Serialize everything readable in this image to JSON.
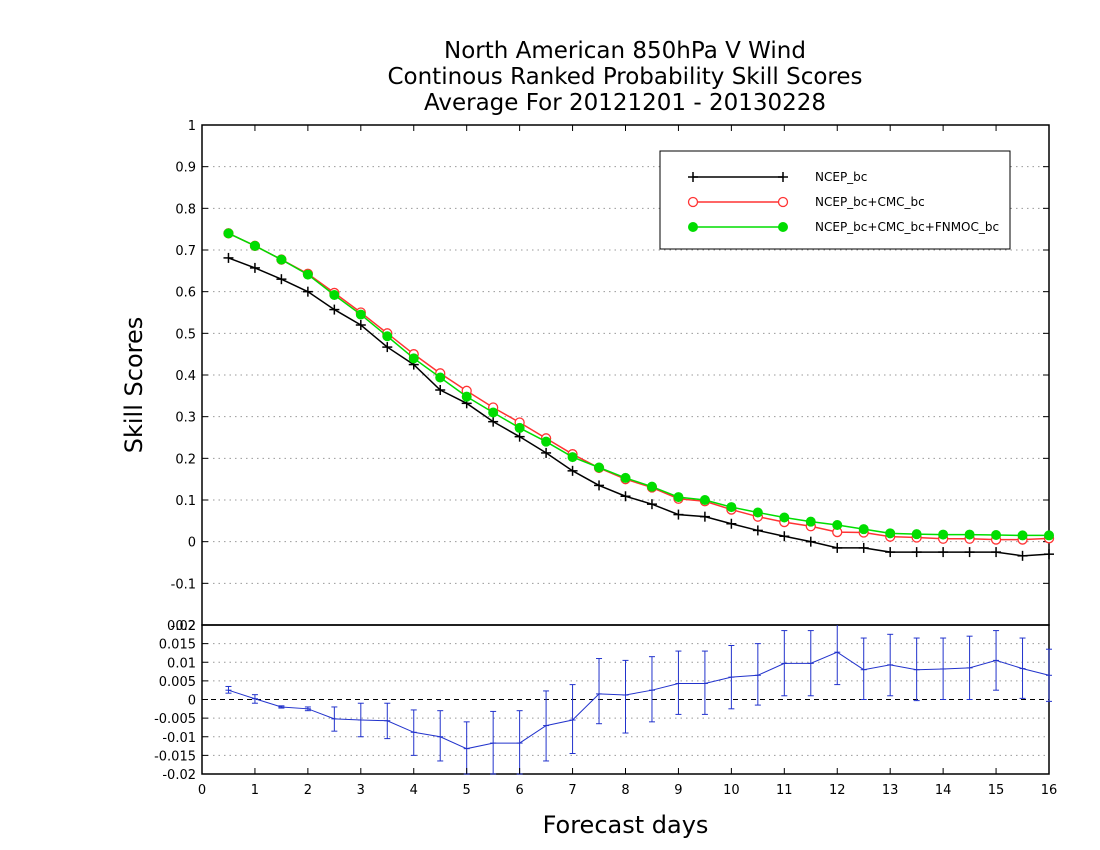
{
  "chart_data": [
    {
      "type": "line",
      "title_lines": [
        "North American 850hPa V Wind",
        "Continous Ranked Probability Skill Scores",
        "Average For 20121201 - 20130228"
      ],
      "xlabel": "Forecast days",
      "ylabel": "Skill Scores",
      "xlim": [
        0,
        16
      ],
      "ylim": [
        -0.2,
        1
      ],
      "xticks": [
        "0",
        "1",
        "2",
        "3",
        "4",
        "5",
        "6",
        "7",
        "8",
        "9",
        "10",
        "11",
        "12",
        "13",
        "14",
        "15",
        "16"
      ],
      "yticks": [
        "-0.2",
        "-0.1",
        "0",
        "0.1",
        "0.2",
        "0.3",
        "0.4",
        "0.5",
        "0.6",
        "0.7",
        "0.8",
        "0.9",
        "1"
      ],
      "grid": "dotted-horizontal",
      "legend_position": "top-right",
      "x": [
        0.5,
        1,
        1.5,
        2,
        2.5,
        3,
        3.5,
        4,
        4.5,
        5,
        5.5,
        6,
        6.5,
        7,
        7.5,
        8,
        8.5,
        9,
        9.5,
        10,
        10.5,
        11,
        11.5,
        12,
        12.5,
        13,
        13.5,
        14,
        14.5,
        15,
        15.5,
        16
      ],
      "series": [
        {
          "name": "NCEP_bc",
          "color": "#000000",
          "marker": "plus",
          "values": [
            0.681,
            0.657,
            0.63,
            0.6,
            0.557,
            0.52,
            0.467,
            0.425,
            0.364,
            0.332,
            0.288,
            0.252,
            0.213,
            0.17,
            0.135,
            0.109,
            0.09,
            0.065,
            0.06,
            0.043,
            0.027,
            0.013,
            0.0,
            -0.015,
            -0.015,
            -0.025,
            -0.025,
            -0.025,
            -0.025,
            -0.025,
            -0.034,
            -0.03
          ]
        },
        {
          "name": "NCEP_bc+CMC_bc",
          "color": "#ff3333",
          "marker": "open-circle",
          "values": [
            0.74,
            0.71,
            0.677,
            0.643,
            0.597,
            0.55,
            0.5,
            0.45,
            0.404,
            0.362,
            0.322,
            0.286,
            0.248,
            0.21,
            0.177,
            0.15,
            0.13,
            0.103,
            0.097,
            0.077,
            0.06,
            0.047,
            0.037,
            0.023,
            0.022,
            0.012,
            0.01,
            0.007,
            0.007,
            0.005,
            0.005,
            0.008
          ]
        },
        {
          "name": "NCEP_bc+CMC_bc+FNMOC_bc",
          "color": "#00dd00",
          "marker": "filled-circle",
          "values": [
            0.74,
            0.71,
            0.677,
            0.641,
            0.592,
            0.545,
            0.493,
            0.44,
            0.394,
            0.348,
            0.31,
            0.273,
            0.24,
            0.203,
            0.178,
            0.153,
            0.132,
            0.107,
            0.1,
            0.083,
            0.07,
            0.058,
            0.048,
            0.04,
            0.03,
            0.02,
            0.018,
            0.017,
            0.017,
            0.016,
            0.015,
            0.015
          ]
        }
      ]
    },
    {
      "type": "line",
      "subtype": "difference-with-error-bars",
      "xlim": [
        0,
        16
      ],
      "ylim": [
        -0.02,
        0.02
      ],
      "yticks": [
        "-0.02",
        "-0.015",
        "-0.01",
        "-0.005",
        "0",
        "0.005",
        "0.01",
        "0.015",
        "0.02"
      ],
      "grid": "dotted-horizontal",
      "zero_line": "dashed",
      "color": "#2233cc",
      "x": [
        0.5,
        1,
        1.5,
        2,
        2.5,
        3,
        3.5,
        4,
        4.5,
        5,
        5.5,
        6,
        6.5,
        7,
        7.5,
        8,
        8.5,
        9,
        9.5,
        10,
        10.5,
        11,
        11.5,
        12,
        12.5,
        13,
        13.5,
        14,
        14.5,
        15,
        15.5,
        16
      ],
      "values": [
        0.0025,
        0.0002,
        -0.002,
        -0.0025,
        -0.0052,
        -0.0055,
        -0.0057,
        -0.0088,
        -0.01,
        -0.0132,
        -0.0117,
        -0.0117,
        -0.007,
        -0.0055,
        0.0015,
        0.0012,
        0.0025,
        0.0043,
        0.0043,
        0.006,
        0.0065,
        0.0097,
        0.0097,
        0.0127,
        0.008,
        0.0093,
        0.008,
        0.0082,
        0.0085,
        0.0105,
        0.0083,
        0.0065
      ],
      "err_low": [
        0.0017,
        -0.001,
        -0.0023,
        -0.003,
        -0.0085,
        -0.01,
        -0.0105,
        -0.015,
        -0.0165,
        -0.02,
        -0.02,
        -0.02,
        -0.0165,
        -0.0145,
        -0.0065,
        -0.009,
        -0.006,
        -0.004,
        -0.004,
        -0.0025,
        -0.0015,
        0.001,
        0.001,
        0.004,
        0.0,
        0.001,
        -0.0003,
        0.0,
        0.0,
        0.0025,
        0.0003,
        -0.0005
      ],
      "err_high": [
        0.0035,
        0.0013,
        -0.0017,
        -0.002,
        -0.002,
        -0.001,
        -0.001,
        -0.0028,
        -0.003,
        -0.006,
        -0.0032,
        -0.003,
        0.0023,
        0.004,
        0.011,
        0.0105,
        0.0115,
        0.013,
        0.013,
        0.0145,
        0.015,
        0.0185,
        0.0185,
        0.0215,
        0.0165,
        0.0175,
        0.0165,
        0.0165,
        0.017,
        0.0185,
        0.0165,
        0.0135
      ]
    }
  ]
}
